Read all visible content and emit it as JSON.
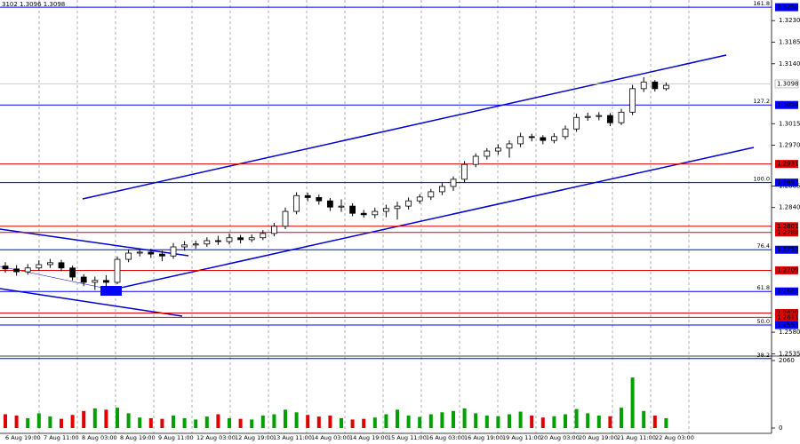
{
  "header": "3102 1.3096 1.3098",
  "chart_data": [
    {
      "type": "candlestick",
      "x_labels": [
        "6 Aug 19:00",
        "7 Aug 11:00",
        "8 Aug 03:00",
        "8 Aug 19:00",
        "9 Aug 11:00",
        "12 Aug 03:00",
        "12 Aug 19:00",
        "13 Aug 11:00",
        "14 Aug 03:00",
        "14 Aug 19:00",
        "15 Aug 11:00",
        "16 Aug 03:00",
        "16 Aug 19:00",
        "19 Aug 11:00",
        "20 Aug 03:00",
        "20 Aug 19:00",
        "21 Aug 11:00",
        "22 Aug 03:00"
      ],
      "open": [
        1.2718,
        1.2712,
        1.2706,
        1.2714,
        1.2721,
        1.2725,
        1.2714,
        1.2695,
        1.2684,
        1.2688,
        1.2684,
        1.2732,
        1.2745,
        1.2747,
        1.2743,
        1.2739,
        1.2758,
        1.2762,
        1.2764,
        1.2771,
        1.2769,
        1.2777,
        1.2773,
        1.2777,
        1.2786,
        1.2801,
        1.2832,
        1.2865,
        1.2861,
        1.2854,
        1.2841,
        1.2843,
        1.2828,
        1.2825,
        1.2832,
        1.2838,
        1.2843,
        1.2854,
        1.2862,
        1.2873,
        1.2884,
        1.2899,
        1.293,
        1.2947,
        1.2958,
        1.2964,
        1.2973,
        1.2988,
        1.2986,
        1.298,
        1.2988,
        1.3004,
        1.3028,
        1.303,
        1.3032,
        1.3017,
        1.3039,
        1.3088,
        1.3102,
        1.3088
      ],
      "high": [
        1.2726,
        1.272,
        1.2722,
        1.273,
        1.2733,
        1.2731,
        1.2719,
        1.2701,
        1.2696,
        1.2699,
        1.2738,
        1.2752,
        1.2755,
        1.2754,
        1.275,
        1.2766,
        1.277,
        1.2771,
        1.2778,
        1.2781,
        1.2786,
        1.2783,
        1.2784,
        1.2793,
        1.2808,
        1.284,
        1.2872,
        1.2871,
        1.2867,
        1.286,
        1.2857,
        1.2849,
        1.2835,
        1.284,
        1.2846,
        1.2852,
        1.2861,
        1.2868,
        1.2879,
        1.2891,
        1.2905,
        1.2937,
        1.2953,
        1.2964,
        1.2972,
        1.298,
        1.2996,
        1.2994,
        1.2991,
        1.2995,
        1.3011,
        1.3036,
        1.3038,
        1.3039,
        1.3037,
        1.3046,
        1.3096,
        1.3112,
        1.3106,
        1.3101
      ],
      "low": [
        1.2704,
        1.2698,
        1.27,
        1.2708,
        1.2714,
        1.2707,
        1.2688,
        1.2676,
        1.2668,
        1.2662,
        1.268,
        1.2726,
        1.2738,
        1.2735,
        1.2728,
        1.2733,
        1.275,
        1.2754,
        1.2758,
        1.2762,
        1.2763,
        1.2765,
        1.2768,
        1.2772,
        1.278,
        1.2795,
        1.2826,
        1.2853,
        1.2846,
        1.2833,
        1.2831,
        1.2822,
        1.2819,
        1.2818,
        1.282,
        1.2815,
        1.2836,
        1.2848,
        1.2856,
        1.2866,
        1.2875,
        1.2893,
        1.2924,
        1.294,
        1.295,
        1.2944,
        1.2966,
        1.2978,
        1.2972,
        1.2974,
        1.2982,
        1.2998,
        1.3021,
        1.3022,
        1.301,
        1.3012,
        1.3033,
        1.3081,
        1.3082,
        1.3084
      ],
      "close": [
        1.2712,
        1.2706,
        1.2714,
        1.2721,
        1.2725,
        1.2714,
        1.2695,
        1.2684,
        1.2688,
        1.2684,
        1.2732,
        1.2745,
        1.2747,
        1.2743,
        1.2739,
        1.2758,
        1.2762,
        1.2764,
        1.2771,
        1.2769,
        1.2777,
        1.2773,
        1.2777,
        1.2786,
        1.2801,
        1.2832,
        1.2865,
        1.2861,
        1.2854,
        1.2841,
        1.2843,
        1.2828,
        1.2825,
        1.2832,
        1.2838,
        1.2843,
        1.2854,
        1.2862,
        1.2873,
        1.2884,
        1.2899,
        1.293,
        1.2947,
        1.2958,
        1.2964,
        1.2973,
        1.2988,
        1.2986,
        1.298,
        1.2988,
        1.3004,
        1.3028,
        1.303,
        1.3032,
        1.3017,
        1.3039,
        1.3088,
        1.3102,
        1.3088,
        1.3095
      ],
      "ylim": [
        1.2532,
        1.3273
      ],
      "yticks": [
        {
          "value": 1.323,
          "label": "1.3230"
        },
        1.3185,
        {
          "value": 1.314,
          "label": "1.3140"
        },
        1.3015,
        {
          "value": 1.297,
          "label": "1.2970"
        },
        1.2885,
        {
          "value": 1.284,
          "label": "1.2840"
        },
        {
          "value": 1.258,
          "label": "1.2580"
        },
        1.2535
      ],
      "levels": [
        {
          "value": 1.3258,
          "fib": "161.8",
          "color": "#0000ff"
        },
        {
          "value": 1.3054,
          "fib": "127.2",
          "color": "#0000ff"
        },
        {
          "value": 1.2892,
          "fib": "100.0",
          "color": "#0000ff"
        },
        {
          "value": 1.2752,
          "fib": "76.4",
          "color": "#0000ff"
        },
        {
          "value": 1.2665,
          "fib": "61.8",
          "color": "#0000ff"
        },
        {
          "value": 1.2595,
          "fib": "50.0",
          "color": "#0000ff"
        },
        {
          "value": 1.2525,
          "fib": "38.2",
          "color": "#0000ff",
          "show_price": false
        },
        {
          "value": 1.2931,
          "color": "#e00000"
        },
        {
          "value": 1.2801,
          "color": "#e00000"
        },
        {
          "value": 1.2788,
          "color": "#e00000"
        },
        {
          "value": 1.2709,
          "color": "#e00000"
        },
        {
          "value": 1.262,
          "label": "1.2620",
          "color": "#e00000"
        },
        {
          "value": 1.2611,
          "color": "#e00000"
        },
        {
          "value": 1.3098,
          "color": "#c0c0c0",
          "current": true
        }
      ]
    },
    {
      "type": "bar",
      "values": [
        420,
        380,
        300,
        450,
        350,
        280,
        400,
        520,
        600,
        560,
        620,
        450,
        320,
        300,
        280,
        380,
        300,
        260,
        350,
        420,
        300,
        280,
        260,
        380,
        420,
        560,
        480,
        400,
        350,
        380,
        300,
        260,
        280,
        320,
        420,
        560,
        380,
        340,
        420,
        480,
        520,
        600,
        450,
        380,
        360,
        420,
        500,
        380,
        320,
        360,
        420,
        580,
        450,
        380,
        360,
        620,
        1540,
        520,
        380,
        300
      ],
      "up_color": "#00a000",
      "down_color": "#e00000",
      "ylim": [
        0,
        2060
      ],
      "yticks": [
        2060,
        0
      ]
    }
  ]
}
